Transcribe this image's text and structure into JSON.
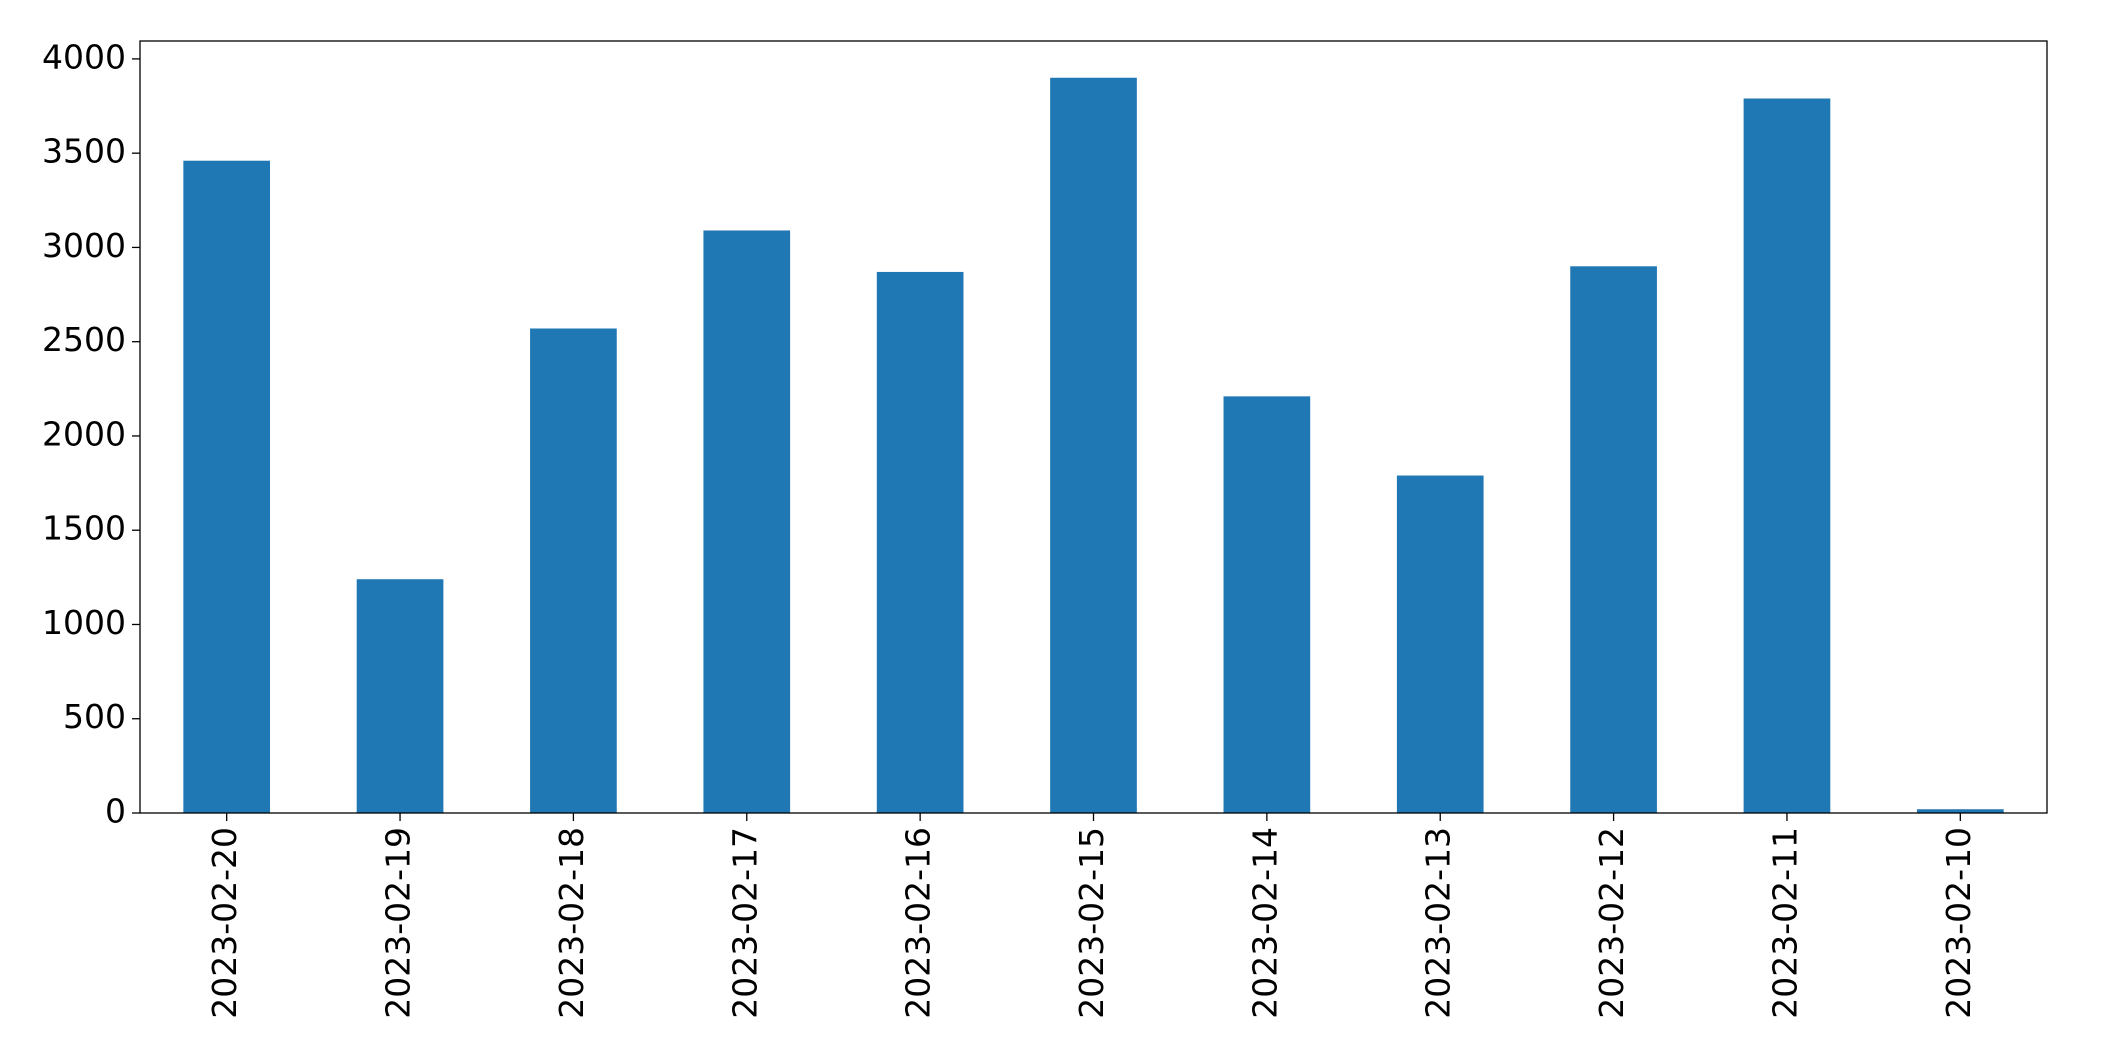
{
  "chart_data": {
    "type": "bar",
    "categories": [
      "2023-02-20",
      "2023-02-19",
      "2023-02-18",
      "2023-02-17",
      "2023-02-16",
      "2023-02-15",
      "2023-02-14",
      "2023-02-13",
      "2023-02-12",
      "2023-02-11",
      "2023-02-10"
    ],
    "values": [
      3460,
      1240,
      2570,
      3090,
      2870,
      3900,
      2210,
      1790,
      2900,
      3790,
      20
    ],
    "color": "#1f77b4",
    "ylim": [
      0,
      4095
    ],
    "yticks": [
      0,
      500,
      1000,
      1500,
      2000,
      2500,
      3000,
      3500,
      4000
    ],
    "grid": false
  }
}
